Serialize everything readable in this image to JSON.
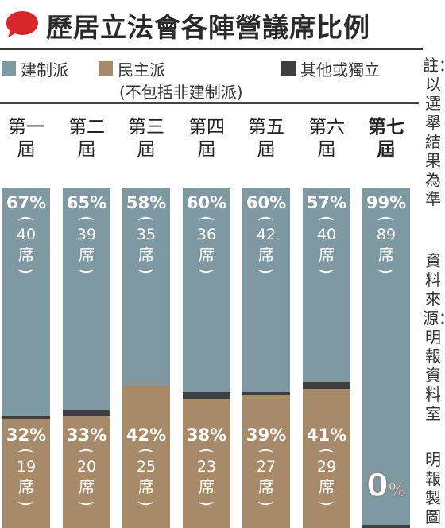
{
  "title": "歷居立法會各陣營議席比例",
  "legend": {
    "pro_establishment": "建制派",
    "pro_democracy": "民主派",
    "pro_democracy_note": "(不包括非建制派)",
    "others": "其他或獨立"
  },
  "notes": {
    "note": "註：以選舉結果為準",
    "source": "資料來源：明報資料室",
    "credit": "明報製圖"
  },
  "colors": {
    "pro_establishment": "#7f99a3",
    "pro_democracy": "#a68a69",
    "others": "#3f3f3f",
    "title_bubble": "#d8262a"
  },
  "chart_data": {
    "type": "bar",
    "stacked": true,
    "normalized": true,
    "orientation": "vertical",
    "categories": [
      "第一屆",
      "第二屆",
      "第三屆",
      "第四屆",
      "第五屆",
      "第六屆",
      "第七屆"
    ],
    "series": [
      {
        "key": "pro_establishment",
        "name": "建制派",
        "values": [
          67,
          65,
          58,
          60,
          60,
          57,
          99
        ],
        "labels": [
          "67%",
          "65%",
          "58%",
          "60%",
          "60%",
          "57%",
          "99%"
        ],
        "seats": [
          "40",
          "39",
          "35",
          "36",
          "42",
          "40",
          "89"
        ]
      },
      {
        "key": "others",
        "name": "其他或獨立",
        "values": [
          1,
          2,
          0,
          2,
          1,
          2,
          1
        ]
      },
      {
        "key": "pro_democracy",
        "name": "民主派",
        "values": [
          32,
          33,
          42,
          38,
          39,
          41,
          0
        ],
        "labels": [
          "32%",
          "33%",
          "42%",
          "38%",
          "39%",
          "41%",
          "0%"
        ],
        "seats": [
          "19",
          "20",
          "25",
          "23",
          "27",
          "29",
          ""
        ]
      }
    ],
    "seat_unit": "席",
    "ylim": [
      0,
      100
    ]
  }
}
